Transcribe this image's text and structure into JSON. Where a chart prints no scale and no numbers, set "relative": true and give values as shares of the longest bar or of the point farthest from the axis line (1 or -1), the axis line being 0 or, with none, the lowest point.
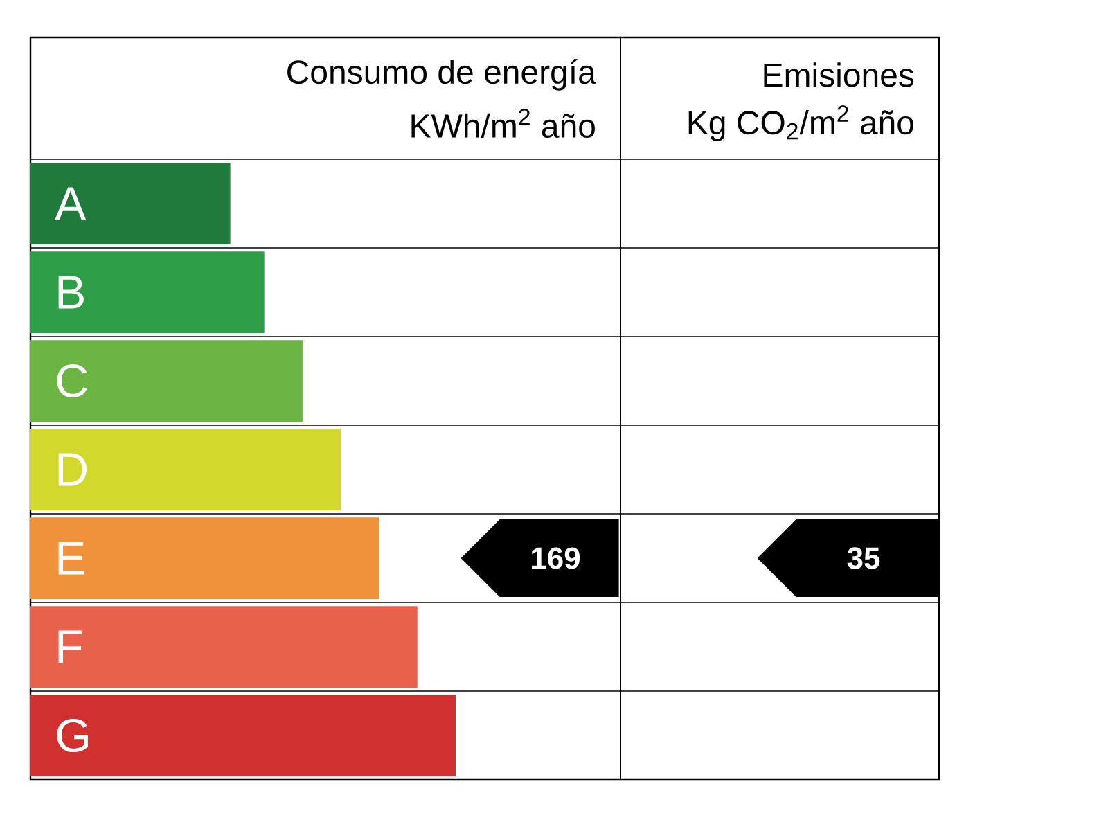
{
  "chart_data": {
    "type": "bar",
    "orientation": "horizontal",
    "relative": true,
    "title": "Consumo de energía",
    "subtitle": "KWh/m$^{2}$ año",
    "categories": [
      "A",
      "B",
      "C",
      "D",
      "E",
      "F",
      "G"
    ],
    "values": [
      0.47,
      0.55,
      0.64,
      0.73,
      0.82,
      0.91,
      1
    ],
    "colors": [
      "#1f7a3c",
      "#2f9e48",
      "#6cb443",
      "#d2d82c",
      "#f0913c",
      "#e8614b",
      "#d0312f"
    ],
    "annotations": [
      "Emisiones",
      "Kg CO$_{2}$/m$^{2}$ año",
      "169",
      "35"
    ]
  }
}
